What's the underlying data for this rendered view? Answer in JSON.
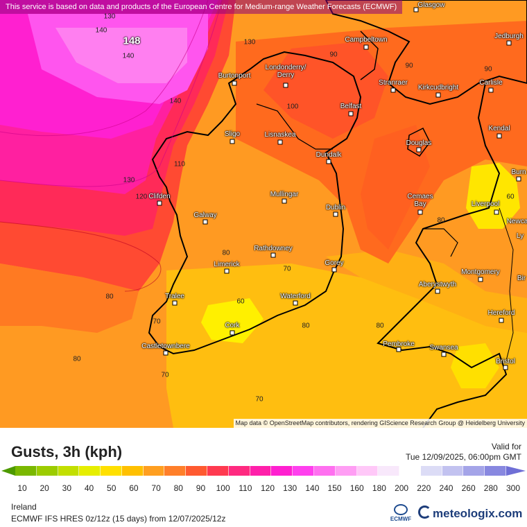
{
  "banner": "This service is based on data and products of the European Centre for Medium-range Weather Forecasts (ECMWF)",
  "attribution": "Map data © OpenStreetMap contributors, rendering GIScience Research Group @ Heidelberg University",
  "max_value": "148",
  "cities": [
    {
      "name": "Glasgow"
    },
    {
      "name": "Jedburgh"
    },
    {
      "name": "Campbeltown"
    },
    {
      "name": "Burtonport"
    },
    {
      "name": "Londonderry/\nDerry"
    },
    {
      "name": "Stranraer"
    },
    {
      "name": "Kirkcudbright"
    },
    {
      "name": "Carlisle"
    },
    {
      "name": "Belfast"
    },
    {
      "name": "Kendal"
    },
    {
      "name": "Sligo"
    },
    {
      "name": "Lisnaskea"
    },
    {
      "name": "Douglas"
    },
    {
      "name": "Dundalk"
    },
    {
      "name": "Burn"
    },
    {
      "name": "Clifden"
    },
    {
      "name": "Mullingar"
    },
    {
      "name": "Cemaes\nBay"
    },
    {
      "name": "Liverpool"
    },
    {
      "name": "Dublin"
    },
    {
      "name": "Galway"
    },
    {
      "name": "Newca\nLy"
    },
    {
      "name": "Rathdowney"
    },
    {
      "name": "Limerick"
    },
    {
      "name": "Gorey"
    },
    {
      "name": "Montgomery"
    },
    {
      "name": "Bir"
    },
    {
      "name": "Aberystwyth"
    },
    {
      "name": "Tralee"
    },
    {
      "name": "Waterford"
    },
    {
      "name": "Hereford"
    },
    {
      "name": "Cork"
    },
    {
      "name": "Pembroke"
    },
    {
      "name": "Swansea"
    },
    {
      "name": "Castletownbere"
    },
    {
      "name": "Bristol"
    }
  ],
  "contour_labels": [
    "130",
    "140",
    "140",
    "130",
    "90",
    "90",
    "90",
    "140",
    "100",
    "110",
    "130",
    "120",
    "80",
    "70",
    "60",
    "80",
    "80",
    "70",
    "80",
    "60",
    "80",
    "70",
    "70",
    "80"
  ],
  "legend": {
    "title": "Gusts, 3h (kph)",
    "valid_label": "Valid for",
    "valid_time": "Tue 12/09/2025, 06:00pm GMT",
    "region": "Ireland",
    "model": "ECMWF IFS HRES 0z/12z (15 days) from 12/07/2025/12z",
    "ticks": [
      "10",
      "20",
      "30",
      "40",
      "50",
      "60",
      "70",
      "80",
      "90",
      "100",
      "110",
      "120",
      "130",
      "140",
      "150",
      "160",
      "180",
      "200",
      "220",
      "240",
      "260",
      "280",
      "300"
    ],
    "colors": [
      "#5aa400",
      "#7ab800",
      "#9ccc00",
      "#c2df00",
      "#e6ee00",
      "#ffe000",
      "#ffc000",
      "#ff9f20",
      "#ff7f2a",
      "#ff5a30",
      "#ff3a50",
      "#ff2a80",
      "#ff20aa",
      "#ff20d0",
      "#ff40ee",
      "#ff70f0",
      "#ff9ef4",
      "#ffc8f8",
      "#f8e8fb",
      "#ffffff",
      "#dcdcf6",
      "#c2c2f0",
      "#a4a4e8",
      "#8888e0",
      "#6f6fd6"
    ],
    "ecmwf_logo": "ECMWF",
    "brand": "meteologix.com"
  }
}
